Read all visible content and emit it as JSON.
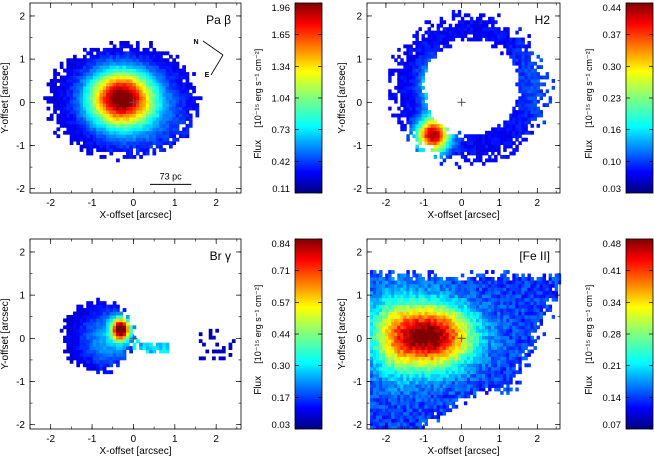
{
  "figure": {
    "colorbar_unit": "[10⁻¹⁵ erg s⁻¹ cm⁻²]"
  },
  "chart_data": [
    {
      "type": "heatmap",
      "line": "Pa β",
      "xlabel": "X-offset [arcsec]",
      "ylabel": "Y-offset [arcsec]",
      "xlim": [
        -2.5,
        2.6
      ],
      "ylim": [
        -2.1,
        2.3
      ],
      "xticks": [
        -2,
        -1,
        0,
        1,
        2
      ],
      "yticks": [
        -2,
        -1,
        0,
        1,
        2
      ],
      "colorbar": {
        "label": "Flux",
        "ticks": [
          1.96,
          1.65,
          1.34,
          1.04,
          0.73,
          0.42,
          0.11
        ]
      },
      "peak": {
        "x": -0.3,
        "y": 0.1,
        "flux": 1.96
      },
      "nucleus": {
        "x": 0,
        "y": 0
      },
      "compass": {
        "north": "N",
        "east": "E"
      },
      "scale_bar": {
        "label": "73 pc",
        "length_arcsec": 1.0
      }
    },
    {
      "type": "heatmap",
      "line": "H2",
      "xlabel": "X-offset [arcsec]",
      "ylabel": "Y-offset [arcsec]",
      "xlim": [
        -2.5,
        2.6
      ],
      "ylim": [
        -2.1,
        2.3
      ],
      "xticks": [
        -2,
        -1,
        0,
        1,
        2
      ],
      "yticks": [
        -2,
        -1,
        0,
        1,
        2
      ],
      "colorbar": {
        "label": "Flux",
        "ticks": [
          0.44,
          0.37,
          0.3,
          0.23,
          0.16,
          0.1,
          0.03
        ]
      },
      "peak": {
        "x": -0.8,
        "y": -0.8,
        "flux": 0.44
      },
      "nucleus": {
        "x": 0,
        "y": 0
      }
    },
    {
      "type": "heatmap",
      "line": "Br γ",
      "xlabel": "X-offset [arcsec]",
      "ylabel": "Y-offset [arcsec]",
      "xlim": [
        -2.5,
        2.6
      ],
      "ylim": [
        -2.1,
        2.3
      ],
      "xticks": [
        -2,
        -1,
        0,
        1,
        2
      ],
      "yticks": [
        -2,
        -1,
        0,
        1,
        2
      ],
      "colorbar": {
        "label": "Flux",
        "ticks": [
          0.84,
          0.71,
          0.57,
          0.44,
          0.3,
          0.17,
          0.03
        ]
      },
      "peak": {
        "x": -0.3,
        "y": 0.25,
        "flux": 0.84
      },
      "nucleus": {
        "x": 0,
        "y": 0
      }
    },
    {
      "type": "heatmap",
      "line": "[Fe II]",
      "xlabel": "X-offset [arcsec]",
      "ylabel": "Y-offset [arcsec]",
      "xlim": [
        -2.5,
        2.6
      ],
      "ylim": [
        -2.1,
        2.3
      ],
      "xticks": [
        -2,
        -1,
        0,
        1,
        2
      ],
      "yticks": [
        -2,
        -1,
        0,
        1,
        2
      ],
      "colorbar": {
        "label": "Flux",
        "ticks": [
          0.48,
          0.41,
          0.34,
          0.28,
          0.21,
          0.14,
          0.07
        ]
      },
      "peak": {
        "x": -0.7,
        "y": 0.1,
        "flux": 0.48
      },
      "nucleus": {
        "x": 0,
        "y": 0
      }
    }
  ]
}
